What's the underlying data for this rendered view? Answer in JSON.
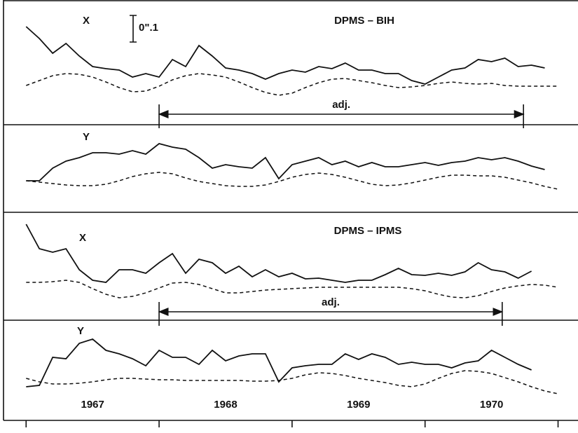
{
  "chart_data": [
    {
      "type": "line",
      "label": "X",
      "title": "DPMS – BIH",
      "scale_bar": "0\".1",
      "xlim": [
        1966.83,
        1971.15
      ],
      "ylim": [
        178,
        0
      ],
      "x": [
        1967.0,
        1967.1,
        1967.2,
        1967.3,
        1967.4,
        1967.5,
        1967.6,
        1967.7,
        1967.8,
        1967.9,
        1968.0,
        1968.1,
        1968.2,
        1968.3,
        1968.4,
        1968.5,
        1968.6,
        1968.7,
        1968.8,
        1968.9,
        1969.0,
        1969.1,
        1969.2,
        1969.3,
        1969.4,
        1969.5,
        1969.6,
        1969.7,
        1969.8,
        1969.9,
        1970.0,
        1970.1,
        1970.2,
        1970.3,
        1970.4,
        1970.5,
        1970.6,
        1970.7,
        1970.8,
        1970.9,
        1971.0
      ],
      "series": [
        {
          "color": "#111",
          "dash": false,
          "values": [
            38,
            55,
            76,
            62,
            80,
            95,
            98,
            100,
            110,
            105,
            110,
            85,
            95,
            65,
            80,
            97,
            100,
            105,
            113,
            105,
            100,
            103,
            95,
            98,
            90,
            100,
            100,
            105,
            105,
            115,
            120,
            110,
            100,
            97,
            85,
            88,
            83,
            95,
            93,
            97,
            null
          ]
        },
        {
          "color": "#111",
          "dash": true,
          "values": [
            122,
            115,
            108,
            105,
            106,
            110,
            117,
            125,
            131,
            130,
            123,
            114,
            108,
            105,
            107,
            110,
            117,
            125,
            132,
            136,
            133,
            125,
            118,
            113,
            112,
            115,
            118,
            122,
            125,
            124,
            122,
            119,
            117,
            119,
            120,
            119,
            122,
            123,
            123,
            123,
            123
          ]
        }
      ],
      "annotation": {
        "text": "adj.",
        "x_span": [
          1968.0,
          1970.74
        ]
      }
    },
    {
      "type": "line",
      "label": "Y",
      "xlim": [
        1966.83,
        1971.15
      ],
      "ylim": [
        125,
        0
      ],
      "x": [
        1967.0,
        1967.1,
        1967.2,
        1967.3,
        1967.4,
        1967.5,
        1967.6,
        1967.7,
        1967.8,
        1967.9,
        1968.0,
        1968.1,
        1968.2,
        1968.3,
        1968.4,
        1968.5,
        1968.6,
        1968.7,
        1968.8,
        1968.9,
        1969.0,
        1969.1,
        1969.2,
        1969.3,
        1969.4,
        1969.5,
        1969.6,
        1969.7,
        1969.8,
        1969.9,
        1970.0,
        1970.1,
        1970.2,
        1970.3,
        1970.4,
        1970.5,
        1970.6,
        1970.7,
        1970.8,
        1970.9,
        1971.0
      ],
      "series": [
        {
          "color": "#111",
          "dash": false,
          "values": [
            80,
            80,
            62,
            52,
            47,
            40,
            40,
            42,
            37,
            42,
            27,
            32,
            35,
            47,
            62,
            57,
            60,
            62,
            47,
            77,
            57,
            52,
            47,
            57,
            52,
            60,
            54,
            60,
            60,
            57,
            54,
            58,
            54,
            52,
            47,
            50,
            47,
            52,
            59,
            64,
            null
          ]
        },
        {
          "color": "#111",
          "dash": true,
          "values": [
            80,
            82,
            84,
            86,
            87,
            87,
            85,
            80,
            74,
            70,
            68,
            70,
            76,
            81,
            84,
            87,
            88,
            88,
            86,
            81,
            75,
            71,
            69,
            71,
            75,
            80,
            85,
            87,
            86,
            83,
            79,
            75,
            72,
            72,
            73,
            73,
            75,
            79,
            83,
            88,
            92
          ]
        }
      ]
    },
    {
      "type": "line",
      "label": "X",
      "title": "DPMS – IPMS",
      "xlim": [
        1966.83,
        1971.15
      ],
      "ylim": [
        154,
        0
      ],
      "x": [
        1967.0,
        1967.1,
        1967.2,
        1967.3,
        1967.4,
        1967.5,
        1967.6,
        1967.7,
        1967.8,
        1967.9,
        1968.0,
        1968.1,
        1968.2,
        1968.3,
        1968.4,
        1968.5,
        1968.6,
        1968.7,
        1968.8,
        1968.9,
        1969.0,
        1969.1,
        1969.2,
        1969.3,
        1969.4,
        1969.5,
        1969.6,
        1969.7,
        1969.8,
        1969.9,
        1970.0,
        1970.1,
        1970.2,
        1970.3,
        1970.4,
        1970.5,
        1970.6,
        1970.7,
        1970.8,
        1970.9,
        1971.0
      ],
      "series": [
        {
          "color": "#111",
          "dash": false,
          "values": [
            17,
            52,
            57,
            52,
            82,
            97,
            100,
            82,
            82,
            87,
            72,
            59,
            87,
            67,
            72,
            87,
            77,
            92,
            82,
            92,
            87,
            95,
            94,
            97,
            100,
            97,
            97,
            89,
            80,
            89,
            90,
            87,
            90,
            85,
            72,
            82,
            85,
            94,
            84,
            null,
            null
          ]
        },
        {
          "color": "#111",
          "dash": true,
          "values": [
            100,
            100,
            99,
            97,
            100,
            109,
            117,
            122,
            120,
            115,
            108,
            101,
            100,
            103,
            109,
            115,
            115,
            113,
            111,
            110,
            109,
            108,
            107,
            107,
            107,
            107,
            107,
            107,
            107,
            109,
            112,
            117,
            121,
            122,
            119,
            113,
            108,
            105,
            103,
            104,
            107
          ]
        }
      ],
      "annotation": {
        "text": "adj.",
        "x_span": [
          1968.0,
          1970.58
        ]
      }
    },
    {
      "type": "line",
      "label": "Y",
      "xlim": [
        1966.83,
        1971.15
      ],
      "ylim": [
        143,
        0
      ],
      "x": [
        1967.0,
        1967.1,
        1967.2,
        1967.3,
        1967.4,
        1967.5,
        1967.6,
        1967.7,
        1967.8,
        1967.9,
        1968.0,
        1968.1,
        1968.2,
        1968.3,
        1968.4,
        1968.5,
        1968.6,
        1968.7,
        1968.8,
        1968.9,
        1969.0,
        1969.1,
        1969.2,
        1969.3,
        1969.4,
        1969.5,
        1969.6,
        1969.7,
        1969.8,
        1969.9,
        1970.0,
        1970.1,
        1970.2,
        1970.3,
        1970.4,
        1970.5,
        1970.6,
        1970.7,
        1970.8,
        1970.9,
        1971.0
      ],
      "series": [
        {
          "color": "#111",
          "dash": false,
          "values": [
            95,
            93,
            53,
            55,
            33,
            27,
            43,
            48,
            55,
            65,
            43,
            53,
            53,
            63,
            43,
            58,
            51,
            48,
            48,
            88,
            68,
            65,
            63,
            63,
            48,
            56,
            48,
            53,
            63,
            60,
            63,
            63,
            68,
            61,
            58,
            43,
            53,
            63,
            71,
            null,
            null
          ]
        },
        {
          "color": "#111",
          "dash": true,
          "values": [
            83,
            88,
            91,
            91,
            90,
            88,
            85,
            83,
            83,
            84,
            85,
            85,
            86,
            86,
            86,
            86,
            86,
            87,
            87,
            86,
            83,
            78,
            75,
            76,
            79,
            83,
            86,
            89,
            93,
            95,
            91,
            83,
            76,
            72,
            73,
            76,
            82,
            88,
            95,
            101,
            105
          ]
        }
      ],
      "xticks": [
        {
          "value": 1967.5,
          "label": "1967"
        },
        {
          "value": 1968.5,
          "label": "1968"
        },
        {
          "value": 1969.5,
          "label": "1969"
        },
        {
          "value": 1970.5,
          "label": "1970"
        }
      ],
      "xtick_marks": [
        1967,
        1968,
        1969,
        1970,
        1971
      ]
    }
  ]
}
